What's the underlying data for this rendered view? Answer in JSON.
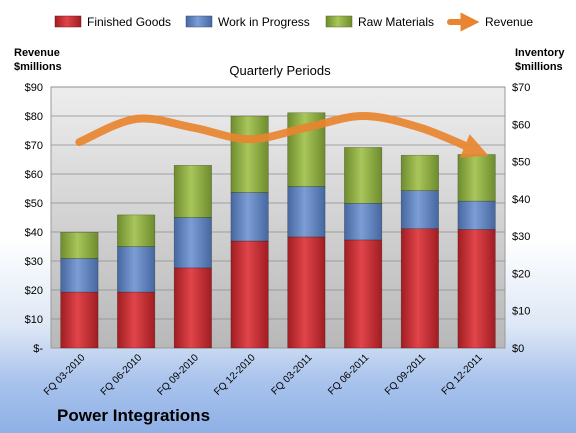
{
  "chart_data": {
    "type": "bar",
    "stacked": true,
    "title": "Quarterly Periods",
    "company": "Power Integrations",
    "left_axis": {
      "label_line1": "Revenue",
      "label_line2": "$millions",
      "min": 0,
      "max": 90,
      "step": 10,
      "tick_labels": [
        "$-",
        "$10",
        "$20",
        "$30",
        "$40",
        "$50",
        "$60",
        "$70",
        "$80",
        "$90"
      ]
    },
    "right_axis": {
      "label_line1": "Inventory",
      "label_line2": "$millions",
      "min": 0,
      "max": 70,
      "step": 10,
      "tick_labels": [
        "$0",
        "$10",
        "$20",
        "$30",
        "$40",
        "$50",
        "$60",
        "$70"
      ]
    },
    "categories": [
      "FQ 03-2010",
      "FQ 06-2010",
      "FQ 09-2010",
      "FQ 12-2010",
      "FQ 03-2011",
      "FQ 06-2011",
      "FQ 09-2011",
      "FQ 12-2011"
    ],
    "series": [
      {
        "name": "Finished Goods",
        "axis": "right",
        "color": "#c0282d",
        "values": [
          15.0,
          15.0,
          21.5,
          28.7,
          29.8,
          29.0,
          32.0,
          31.8
        ]
      },
      {
        "name": "Work in Progress",
        "axis": "right",
        "color": "#5a7fbd",
        "values": [
          9.0,
          12.2,
          13.5,
          13.0,
          13.5,
          9.8,
          10.2,
          7.6
        ]
      },
      {
        "name": "Raw Materials",
        "axis": "right",
        "color": "#8fb042",
        "values": [
          7.0,
          8.5,
          14.0,
          20.5,
          19.8,
          15.0,
          9.5,
          12.5
        ]
      }
    ],
    "line_series": {
      "name": "Revenue",
      "axis": "left",
      "color": "#e98530",
      "values": [
        71,
        79,
        76,
        72,
        76,
        80,
        76,
        68
      ]
    },
    "grid": true,
    "legend_position": "top"
  }
}
